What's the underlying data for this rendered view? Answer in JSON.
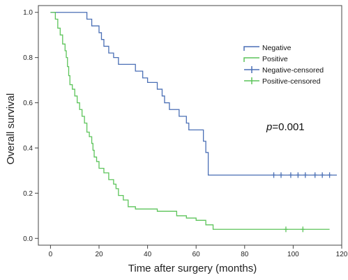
{
  "chart_data": {
    "type": "line",
    "xlabel": "Time after surgery (months)",
    "ylabel": "Overall survival",
    "xlim": [
      -5,
      120
    ],
    "ylim": [
      -0.03,
      1.03
    ],
    "x_ticks": [
      0,
      20,
      40,
      60,
      80,
      100,
      120
    ],
    "y_ticks": [
      0.0,
      0.2,
      0.4,
      0.6,
      0.8,
      1.0
    ],
    "x_tick_labels": [
      "0",
      "20",
      "40",
      "60",
      "80",
      "100",
      "120"
    ],
    "y_tick_labels": [
      "0.0",
      "0.2",
      "0.4",
      "0.6",
      "0.8",
      "1.0"
    ],
    "grid": false,
    "legend_position": "top-right",
    "annotation": {
      "italic": "p",
      "rest": "=0.001"
    },
    "series": [
      {
        "name": "Negative",
        "color": "#4a6fb5",
        "steps": [
          [
            0,
            1.0
          ],
          [
            15,
            0.97
          ],
          [
            17,
            0.94
          ],
          [
            20,
            0.91
          ],
          [
            21,
            0.88
          ],
          [
            22,
            0.85
          ],
          [
            24,
            0.82
          ],
          [
            26,
            0.8
          ],
          [
            28,
            0.77
          ],
          [
            35,
            0.74
          ],
          [
            38,
            0.71
          ],
          [
            40,
            0.69
          ],
          [
            44,
            0.66
          ],
          [
            46,
            0.63
          ],
          [
            47,
            0.6
          ],
          [
            49,
            0.57
          ],
          [
            53,
            0.54
          ],
          [
            56,
            0.51
          ],
          [
            57,
            0.48
          ],
          [
            63,
            0.43
          ],
          [
            64,
            0.38
          ],
          [
            65,
            0.28
          ],
          [
            118,
            0.28
          ]
        ],
        "censored": [
          92,
          95,
          99,
          102,
          105,
          109,
          112,
          115
        ]
      },
      {
        "name": "Positive",
        "color": "#5cc45a",
        "steps": [
          [
            0,
            1.0
          ],
          [
            2,
            0.97
          ],
          [
            3,
            0.93
          ],
          [
            4,
            0.9
          ],
          [
            5,
            0.86
          ],
          [
            6,
            0.83
          ],
          [
            6.5,
            0.8
          ],
          [
            7,
            0.76
          ],
          [
            7.5,
            0.72
          ],
          [
            8,
            0.68
          ],
          [
            9,
            0.66
          ],
          [
            10,
            0.63
          ],
          [
            11,
            0.6
          ],
          [
            12,
            0.57
          ],
          [
            13,
            0.54
          ],
          [
            14,
            0.51
          ],
          [
            15,
            0.47
          ],
          [
            16,
            0.45
          ],
          [
            17,
            0.42
          ],
          [
            17.5,
            0.39
          ],
          [
            18,
            0.36
          ],
          [
            19,
            0.34
          ],
          [
            20,
            0.31
          ],
          [
            22,
            0.29
          ],
          [
            24,
            0.26
          ],
          [
            26,
            0.24
          ],
          [
            27,
            0.22
          ],
          [
            28,
            0.19
          ],
          [
            30,
            0.17
          ],
          [
            32,
            0.14
          ],
          [
            35,
            0.13
          ],
          [
            44,
            0.12
          ],
          [
            52,
            0.1
          ],
          [
            56,
            0.09
          ],
          [
            60,
            0.08
          ],
          [
            64,
            0.06
          ],
          [
            67,
            0.04
          ],
          [
            115,
            0.04
          ]
        ],
        "censored": [
          97,
          104
        ]
      }
    ],
    "legend": [
      {
        "label": "Negative",
        "color": "#4a6fb5",
        "style": "line"
      },
      {
        "label": "Positive",
        "color": "#5cc45a",
        "style": "line"
      },
      {
        "label": "Negative-censored",
        "color": "#4a6fb5",
        "style": "plus"
      },
      {
        "label": "Positive-censored",
        "color": "#5cc45a",
        "style": "plus"
      }
    ]
  }
}
